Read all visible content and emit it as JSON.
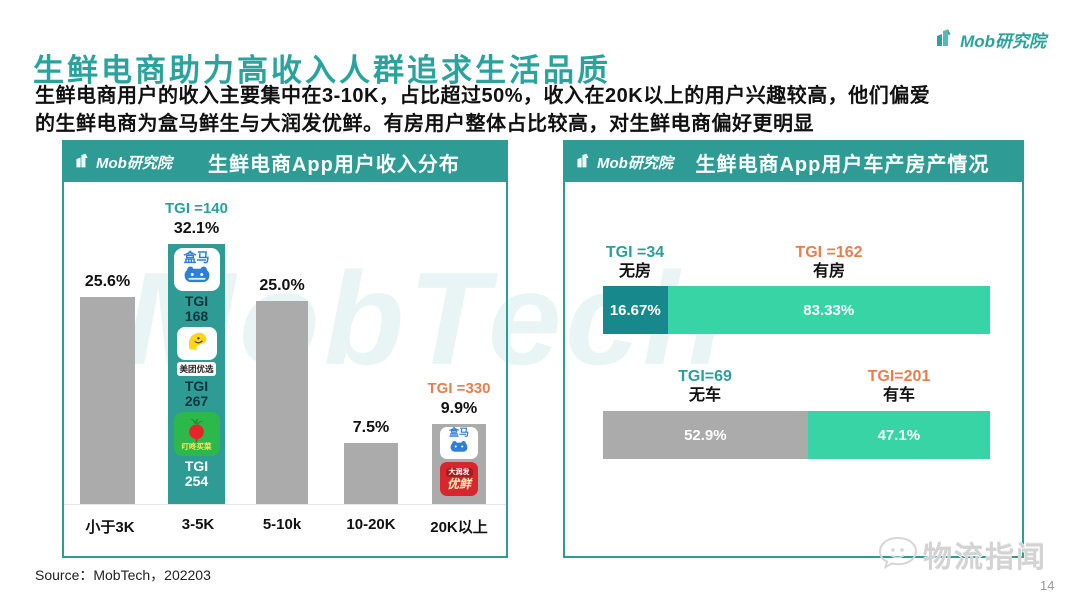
{
  "page": {
    "title": "生鲜电商助力高收入人群追求生活品质",
    "brand": "Mob研究院",
    "description_line1": "生鲜电商用户的收入主要集中在3-10K，占比超过50%，收入在20K以上的用户兴趣较高，他们偏爱",
    "description_line2": "的生鲜电商为盒马鲜生与大润发优鲜。有房用户整体占比较高，对生鲜电商偏好更明显",
    "source": "Source：MobTech，202203",
    "page_number": "14",
    "watermark_center": "MobTech",
    "watermark_corner": "物流指闻"
  },
  "colors": {
    "title_teal": "#2AA39D",
    "panel_teal": "#2E9C95",
    "dark_teal_segment": "#17898D",
    "mint_green": "#38D4A5",
    "gray_bar": "#ABABAB",
    "orange_tgi": "#E87E4D",
    "teal_tgi": "#2BA09A"
  },
  "income_chart": {
    "header": "生鲜电商App用户收入分布",
    "bars": [
      {
        "label": "小于3K",
        "value": "25.6%"
      },
      {
        "label": "3-5K",
        "value": "32.1%",
        "tgi": "TGI =140",
        "apps": [
          {
            "name": "盒马",
            "tgi_label": "TGI",
            "tgi_value": "168"
          },
          {
            "name": "美团优选",
            "tgi_label": "TGI",
            "tgi_value": "267"
          },
          {
            "name": "叮咚买菜",
            "tgi_label": "TGI",
            "tgi_value": "254"
          }
        ]
      },
      {
        "label": "5-10k",
        "value": "25.0%"
      },
      {
        "label": "10-20K",
        "value": "7.5%"
      },
      {
        "label": "20K以上",
        "value": "9.9%",
        "tgi": "TGI =330",
        "apps": [
          {
            "name": "盒马"
          },
          {
            "name": "大润发优鲜",
            "line1": "大润发",
            "line2": "优鲜"
          }
        ]
      }
    ]
  },
  "asset_chart": {
    "header": "生鲜电商App用户车产房产情况",
    "rows": [
      {
        "segments": [
          {
            "tgi": "TGI =34",
            "label": "无房",
            "value": "16.67%"
          },
          {
            "tgi": "TGI =162",
            "label": "有房",
            "value": "83.33%"
          }
        ]
      },
      {
        "segments": [
          {
            "tgi": "TGI=69",
            "label": "无车",
            "value": "52.9%"
          },
          {
            "tgi": "TGI=201",
            "label": "有车",
            "value": "47.1%"
          }
        ]
      }
    ]
  },
  "chart_data": [
    {
      "type": "bar",
      "title": "生鲜电商App用户收入分布",
      "categories": [
        "小于3K",
        "3-5K",
        "5-10k",
        "10-20K",
        "20K以上"
      ],
      "values": [
        25.6,
        32.1,
        25.0,
        7.5,
        9.9
      ],
      "unit": "%",
      "ylim": [
        0,
        35
      ],
      "grid": false,
      "highlight_category": "3-5K",
      "annotations": [
        {
          "category": "3-5K",
          "tgi": 140,
          "apps": [
            {
              "app": "盒马",
              "tgi": 168
            },
            {
              "app": "美团优选",
              "tgi": 267
            },
            {
              "app": "叮咚买菜",
              "tgi": 254
            }
          ]
        },
        {
          "category": "20K以上",
          "tgi": 330,
          "apps": [
            {
              "app": "盒马"
            },
            {
              "app": "大润发优鲜"
            }
          ]
        }
      ]
    },
    {
      "type": "bar",
      "subtype": "horizontal-stacked",
      "title": "生鲜电商App用户车产房产情况",
      "rows": [
        {
          "category": "房产",
          "segments": [
            {
              "label": "无房",
              "value": 16.67,
              "tgi": 34
            },
            {
              "label": "有房",
              "value": 83.33,
              "tgi": 162
            }
          ]
        },
        {
          "category": "车产",
          "segments": [
            {
              "label": "无车",
              "value": 52.9,
              "tgi": 69
            },
            {
              "label": "有车",
              "value": 47.1,
              "tgi": 201
            }
          ]
        }
      ]
    }
  ]
}
